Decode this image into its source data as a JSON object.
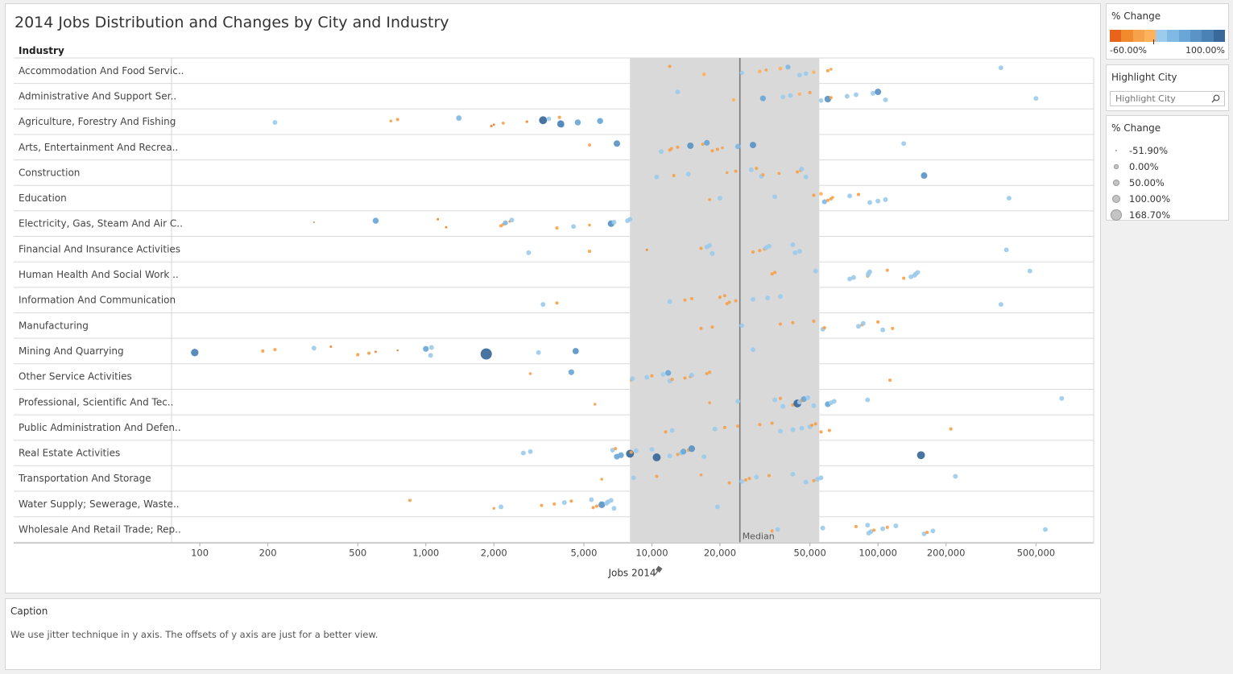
{
  "title": "2014 Jobs Distribution and Changes by City and Industry",
  "caption": {
    "title": "Caption",
    "text": "We use jitter technique in y axis. The offsets of y axis are just for a better view."
  },
  "highlight": {
    "title": "Highlight City",
    "placeholder": "Highlight City"
  },
  "color_legend": {
    "title": "% Change",
    "min_label": "-60.00%",
    "max_label": "100.00%",
    "colors": [
      "#e8631c",
      "#f08a2d",
      "#f6a24b",
      "#ffb25c",
      "#9ccbeb",
      "#80b9e3",
      "#6aa7d8",
      "#5a94c6",
      "#4b82b6",
      "#39689a"
    ]
  },
  "size_legend": {
    "title": "% Change",
    "items": [
      {
        "label": "-51.90%",
        "value": -51.9
      },
      {
        "label": "0.00%",
        "value": 0
      },
      {
        "label": "50.00%",
        "value": 50
      },
      {
        "label": "100.00%",
        "value": 100
      },
      {
        "label": "168.70%",
        "value": 168.7
      }
    ]
  },
  "chart_data": {
    "type": "scatter",
    "title": "2014 Jobs Distribution and Changes by City and Industry",
    "xlabel": "Jobs 2014",
    "ylabel": "Industry",
    "xscale": "log",
    "xlim": [
      75,
      900000
    ],
    "median_label": "Median",
    "median_value": 24500,
    "band": [
      8000,
      55000
    ],
    "x_ticks": [
      {
        "v": 100,
        "label": "100"
      },
      {
        "v": 200,
        "label": "200"
      },
      {
        "v": 500,
        "label": "500"
      },
      {
        "v": 1000,
        "label": "1,000"
      },
      {
        "v": 2000,
        "label": "2,000"
      },
      {
        "v": 5000,
        "label": "5,000"
      },
      {
        "v": 10000,
        "label": "10,000"
      },
      {
        "v": 20000,
        "label": "20,000"
      },
      {
        "v": 50000,
        "label": "50,000"
      },
      {
        "v": 100000,
        "label": "100,000"
      },
      {
        "v": 200000,
        "label": "200,000"
      },
      {
        "v": 500000,
        "label": "500,000"
      }
    ],
    "categories": [
      "Accommodation And Food Servic..",
      "Administrative And Support Ser..",
      "Agriculture, Forestry And Fishing",
      "Arts, Entertainment And Recrea..",
      "Construction",
      "Education",
      "Electricity, Gas, Steam And Air C..",
      "Financial And Insurance Activities",
      "Human Health And Social Work ..",
      "Information And Communication",
      "Manufacturing",
      "Mining And Quarrying",
      "Other Service Activities",
      "Professional, Scientific And Tec..",
      "Public Administration And Defen..",
      "Real Estate Activities",
      "Transportation And Storage",
      "Water Supply; Sewerage, Waste..",
      "Wholesale And Retail Trade; Rep.."
    ],
    "points": [
      [
        0,
        12000,
        -20
      ],
      [
        0,
        17000,
        -10
      ],
      [
        0,
        25000,
        5
      ],
      [
        0,
        30000,
        -10
      ],
      [
        0,
        32000,
        -25
      ],
      [
        0,
        37000,
        -5
      ],
      [
        0,
        40000,
        20
      ],
      [
        0,
        45000,
        15
      ],
      [
        0,
        48000,
        10
      ],
      [
        0,
        52000,
        -15
      ],
      [
        0,
        60000,
        -20
      ],
      [
        0,
        62000,
        -30
      ],
      [
        0,
        350000,
        15
      ],
      [
        1,
        13000,
        15
      ],
      [
        1,
        23000,
        -15
      ],
      [
        1,
        31000,
        40
      ],
      [
        1,
        38000,
        10
      ],
      [
        1,
        41000,
        15
      ],
      [
        1,
        45000,
        -15
      ],
      [
        1,
        50000,
        -20
      ],
      [
        1,
        56000,
        10
      ],
      [
        1,
        60000,
        60
      ],
      [
        1,
        62000,
        -20
      ],
      [
        1,
        73000,
        15
      ],
      [
        1,
        80000,
        15
      ],
      [
        1,
        95000,
        15
      ],
      [
        1,
        100000,
        55
      ],
      [
        1,
        108000,
        15
      ],
      [
        1,
        500000,
        15
      ],
      [
        2,
        215,
        15
      ],
      [
        2,
        700,
        -30
      ],
      [
        2,
        750,
        -20
      ],
      [
        2,
        1400,
        30
      ],
      [
        2,
        1950,
        -35
      ],
      [
        2,
        2000,
        -50
      ],
      [
        2,
        2200,
        -25
      ],
      [
        2,
        2800,
        -35
      ],
      [
        2,
        3300,
        90
      ],
      [
        2,
        3500,
        10
      ],
      [
        2,
        3900,
        -20
      ],
      [
        2,
        4000,
        15
      ],
      [
        2,
        3950,
        70
      ],
      [
        2,
        4700,
        45
      ],
      [
        2,
        5900,
        45
      ],
      [
        3,
        5300,
        -25
      ],
      [
        3,
        7000,
        55
      ],
      [
        3,
        11000,
        15
      ],
      [
        3,
        12000,
        -20
      ],
      [
        3,
        12200,
        -20
      ],
      [
        3,
        13000,
        -20
      ],
      [
        3,
        14800,
        55
      ],
      [
        3,
        16800,
        -20
      ],
      [
        3,
        17500,
        40
      ],
      [
        3,
        18500,
        -20
      ],
      [
        3,
        19500,
        -20
      ],
      [
        3,
        20500,
        -30
      ],
      [
        3,
        24000,
        30
      ],
      [
        3,
        28000,
        55
      ],
      [
        3,
        130000,
        15
      ],
      [
        4,
        10500,
        15
      ],
      [
        4,
        12500,
        -20
      ],
      [
        4,
        14500,
        15
      ],
      [
        4,
        21500,
        -30
      ],
      [
        4,
        23500,
        -20
      ],
      [
        4,
        27500,
        15
      ],
      [
        4,
        29000,
        -20
      ],
      [
        4,
        30500,
        15
      ],
      [
        4,
        31000,
        -20
      ],
      [
        4,
        36500,
        -25
      ],
      [
        4,
        44000,
        -20
      ],
      [
        4,
        45500,
        -20
      ],
      [
        4,
        46000,
        15
      ],
      [
        4,
        48000,
        15
      ],
      [
        4,
        160000,
        55
      ],
      [
        5,
        18000,
        -25
      ],
      [
        5,
        20000,
        15
      ],
      [
        5,
        35000,
        15
      ],
      [
        5,
        52000,
        -20
      ],
      [
        5,
        56000,
        -10
      ],
      [
        5,
        58000,
        20
      ],
      [
        5,
        60000,
        -20
      ],
      [
        5,
        62000,
        -20
      ],
      [
        5,
        63000,
        -30
      ],
      [
        5,
        75000,
        15
      ],
      [
        5,
        82000,
        -20
      ],
      [
        5,
        92000,
        15
      ],
      [
        5,
        100000,
        15
      ],
      [
        5,
        108000,
        15
      ],
      [
        5,
        380000,
        15
      ],
      [
        6,
        320,
        -60
      ],
      [
        6,
        600,
        45
      ],
      [
        6,
        1130,
        -40
      ],
      [
        6,
        1230,
        -40
      ],
      [
        6,
        2150,
        -20
      ],
      [
        6,
        2200,
        -25
      ],
      [
        6,
        2250,
        20
      ],
      [
        6,
        2350,
        -40
      ],
      [
        6,
        2400,
        15
      ],
      [
        6,
        3800,
        -20
      ],
      [
        6,
        4500,
        15
      ],
      [
        6,
        5300,
        -30
      ],
      [
        6,
        6600,
        60
      ],
      [
        6,
        6800,
        15
      ],
      [
        6,
        7800,
        15
      ],
      [
        6,
        8000,
        15
      ],
      [
        7,
        2850,
        15
      ],
      [
        7,
        5300,
        -20
      ],
      [
        7,
        9500,
        -40
      ],
      [
        7,
        16500,
        -20
      ],
      [
        7,
        17500,
        15
      ],
      [
        7,
        18000,
        15
      ],
      [
        7,
        18500,
        15
      ],
      [
        7,
        28000,
        -20
      ],
      [
        7,
        30000,
        -20
      ],
      [
        7,
        31500,
        -20
      ],
      [
        7,
        32000,
        15
      ],
      [
        7,
        33000,
        15
      ],
      [
        7,
        42000,
        15
      ],
      [
        7,
        43000,
        15
      ],
      [
        7,
        45000,
        15
      ],
      [
        7,
        370000,
        15
      ],
      [
        8,
        34000,
        -20
      ],
      [
        8,
        35000,
        -20
      ],
      [
        8,
        53000,
        15
      ],
      [
        8,
        75000,
        15
      ],
      [
        8,
        78000,
        15
      ],
      [
        8,
        90000,
        -20
      ],
      [
        8,
        90500,
        15
      ],
      [
        8,
        91000,
        15
      ],
      [
        8,
        92000,
        15
      ],
      [
        8,
        110000,
        -20
      ],
      [
        8,
        130000,
        -20
      ],
      [
        8,
        140000,
        15
      ],
      [
        8,
        145000,
        15
      ],
      [
        8,
        147000,
        15
      ],
      [
        8,
        150000,
        15
      ],
      [
        8,
        470000,
        15
      ],
      [
        9,
        3300,
        15
      ],
      [
        9,
        3800,
        -20
      ],
      [
        9,
        12000,
        15
      ],
      [
        9,
        14000,
        -20
      ],
      [
        9,
        15000,
        -20
      ],
      [
        9,
        20000,
        -20
      ],
      [
        9,
        21000,
        -20
      ],
      [
        9,
        21500,
        -20
      ],
      [
        9,
        22000,
        -20
      ],
      [
        9,
        23500,
        -20
      ],
      [
        9,
        28000,
        15
      ],
      [
        9,
        32500,
        15
      ],
      [
        9,
        37000,
        15
      ],
      [
        9,
        350000,
        15
      ],
      [
        10,
        16500,
        -20
      ],
      [
        10,
        18500,
        -20
      ],
      [
        10,
        25000,
        15
      ],
      [
        10,
        37000,
        -20
      ],
      [
        10,
        42000,
        -20
      ],
      [
        10,
        52000,
        -20
      ],
      [
        10,
        57000,
        15
      ],
      [
        10,
        58000,
        -20
      ],
      [
        10,
        82000,
        15
      ],
      [
        10,
        85000,
        -20
      ],
      [
        10,
        86000,
        15
      ],
      [
        10,
        100000,
        -20
      ],
      [
        10,
        105000,
        15
      ],
      [
        10,
        116000,
        -20
      ],
      [
        11,
        95,
        80
      ],
      [
        11,
        190,
        -20
      ],
      [
        11,
        215,
        -20
      ],
      [
        11,
        320,
        15
      ],
      [
        11,
        380,
        -40
      ],
      [
        11,
        500,
        -20
      ],
      [
        11,
        560,
        -20
      ],
      [
        11,
        600,
        -40
      ],
      [
        11,
        750,
        -55
      ],
      [
        11,
        1000,
        40
      ],
      [
        11,
        1060,
        15
      ],
      [
        11,
        1050,
        15
      ],
      [
        11,
        1850,
        168
      ],
      [
        11,
        3150,
        15
      ],
      [
        11,
        4600,
        50
      ],
      [
        11,
        28000,
        15
      ],
      [
        12,
        2900,
        -30
      ],
      [
        12,
        4400,
        40
      ],
      [
        12,
        8100,
        -30
      ],
      [
        12,
        8200,
        15
      ],
      [
        12,
        9500,
        15
      ],
      [
        12,
        10000,
        -20
      ],
      [
        12,
        11200,
        15
      ],
      [
        12,
        11800,
        40
      ],
      [
        12,
        12000,
        15
      ],
      [
        12,
        12300,
        -20
      ],
      [
        12,
        14000,
        -20
      ],
      [
        12,
        14800,
        -20
      ],
      [
        12,
        15000,
        15
      ],
      [
        12,
        17500,
        -20
      ],
      [
        12,
        18000,
        -20
      ],
      [
        12,
        113000,
        -20
      ],
      [
        13,
        5600,
        -30
      ],
      [
        13,
        18000,
        -30
      ],
      [
        13,
        24000,
        15
      ],
      [
        13,
        35000,
        15
      ],
      [
        13,
        37000,
        -20
      ],
      [
        13,
        38000,
        15
      ],
      [
        13,
        42000,
        -20
      ],
      [
        13,
        44000,
        90
      ],
      [
        13,
        45000,
        15
      ],
      [
        13,
        46000,
        -20
      ],
      [
        13,
        47000,
        40
      ],
      [
        13,
        49000,
        15
      ],
      [
        13,
        52000,
        15
      ],
      [
        13,
        60000,
        40
      ],
      [
        13,
        62000,
        15
      ],
      [
        13,
        64000,
        15
      ],
      [
        13,
        90000,
        15
      ],
      [
        13,
        650000,
        15
      ],
      [
        14,
        11500,
        -20
      ],
      [
        14,
        12300,
        15
      ],
      [
        14,
        19000,
        15
      ],
      [
        14,
        21000,
        -20
      ],
      [
        14,
        24000,
        -20
      ],
      [
        14,
        30000,
        -20
      ],
      [
        14,
        34000,
        -20
      ],
      [
        14,
        37000,
        15
      ],
      [
        14,
        42000,
        15
      ],
      [
        14,
        46000,
        15
      ],
      [
        14,
        50000,
        15
      ],
      [
        14,
        51000,
        -20
      ],
      [
        14,
        53000,
        -20
      ],
      [
        14,
        56000,
        -20
      ],
      [
        14,
        61000,
        -20
      ],
      [
        14,
        210000,
        -20
      ],
      [
        15,
        2700,
        15
      ],
      [
        15,
        2900,
        15
      ],
      [
        15,
        6700,
        15
      ],
      [
        15,
        6900,
        -20
      ],
      [
        15,
        7000,
        40
      ],
      [
        15,
        7300,
        40
      ],
      [
        15,
        8000,
        90
      ],
      [
        15,
        8100,
        -20
      ],
      [
        15,
        8500,
        15
      ],
      [
        15,
        10000,
        15
      ],
      [
        15,
        10500,
        90
      ],
      [
        15,
        12000,
        15
      ],
      [
        15,
        13000,
        -20
      ],
      [
        15,
        13500,
        15
      ],
      [
        15,
        13800,
        40
      ],
      [
        15,
        14500,
        -20
      ],
      [
        15,
        15000,
        60
      ],
      [
        15,
        17000,
        15
      ],
      [
        15,
        155000,
        90
      ],
      [
        16,
        6000,
        -30
      ],
      [
        16,
        8300,
        15
      ],
      [
        16,
        10500,
        -20
      ],
      [
        16,
        16500,
        -30
      ],
      [
        16,
        22000,
        -20
      ],
      [
        16,
        25000,
        15
      ],
      [
        16,
        26000,
        -20
      ],
      [
        16,
        27000,
        -20
      ],
      [
        16,
        29000,
        15
      ],
      [
        16,
        33000,
        -20
      ],
      [
        16,
        42000,
        15
      ],
      [
        16,
        48000,
        15
      ],
      [
        16,
        52000,
        -20
      ],
      [
        16,
        54000,
        15
      ],
      [
        16,
        56000,
        15
      ],
      [
        16,
        220000,
        15
      ],
      [
        17,
        850,
        -20
      ],
      [
        17,
        2000,
        -30
      ],
      [
        17,
        2150,
        15
      ],
      [
        17,
        3250,
        -20
      ],
      [
        17,
        3700,
        -20
      ],
      [
        17,
        4100,
        15
      ],
      [
        17,
        4400,
        -20
      ],
      [
        17,
        5400,
        15
      ],
      [
        17,
        5500,
        -20
      ],
      [
        17,
        5700,
        -20
      ],
      [
        17,
        6000,
        60
      ],
      [
        17,
        6300,
        15
      ],
      [
        17,
        6400,
        15
      ],
      [
        17,
        6600,
        15
      ],
      [
        17,
        6800,
        15
      ],
      [
        17,
        19500,
        15
      ],
      [
        18,
        34000,
        -20
      ],
      [
        18,
        36000,
        15
      ],
      [
        18,
        57000,
        15
      ],
      [
        18,
        80000,
        -20
      ],
      [
        18,
        90000,
        15
      ],
      [
        18,
        91000,
        15
      ],
      [
        18,
        93000,
        15
      ],
      [
        18,
        96000,
        -20
      ],
      [
        18,
        105000,
        15
      ],
      [
        18,
        110000,
        -20
      ],
      [
        18,
        120000,
        15
      ],
      [
        18,
        160000,
        15
      ],
      [
        18,
        165000,
        -20
      ],
      [
        18,
        175000,
        15
      ],
      [
        18,
        550000,
        15
      ]
    ]
  }
}
